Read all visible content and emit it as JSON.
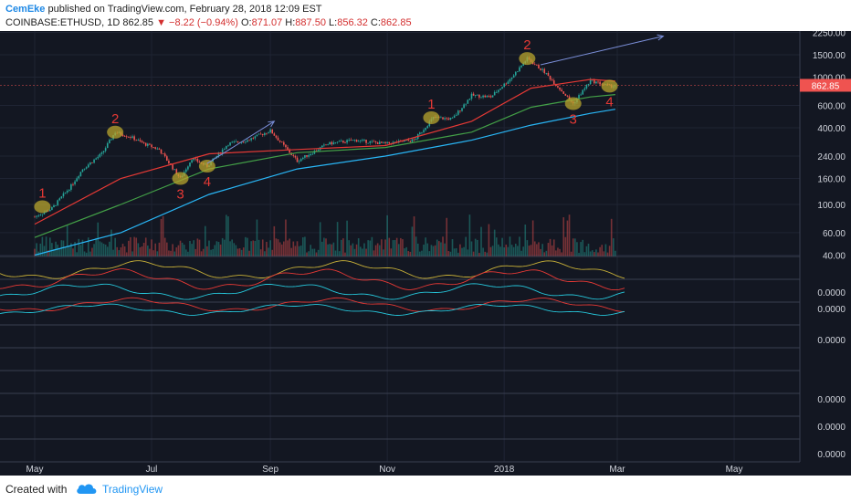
{
  "header": {
    "author": "CemEke",
    "published": "published on TradingView.com, February 28, 2018 12:09 EST",
    "symbol": "COINBASE:ETHUSD, 1D",
    "last": "862.85",
    "change": "−8.22 (−0.94%)",
    "o_label": "O:",
    "o": "871.07",
    "h_label": "H:",
    "h": "887.50",
    "l_label": "L:",
    "l": "856.32",
    "c_label": "C:",
    "c": "862.85"
  },
  "footer": {
    "created_with": "Created with",
    "brand": "TradingView"
  },
  "colors": {
    "background": "#131722",
    "up": "#26a69a",
    "down": "#ef5350",
    "ma_red": "#e53935",
    "ma_green": "#43a047",
    "ma_cyan": "#29b6f6",
    "annotation": "#e53935",
    "highlight": "#b8a52e",
    "arrow": "#7b8fd9"
  },
  "chart_data": {
    "type": "candlestick",
    "x_axis_labels": [
      "May",
      "Jul",
      "Sep",
      "Nov",
      "2018",
      "Mar",
      "May"
    ],
    "y_axis_labels": [
      "2250.00",
      "1500.00",
      "1000.00",
      "600.00",
      "400.00",
      "240.00",
      "160.00",
      "100.00",
      "60.00",
      "40.00"
    ],
    "price_scale": "log",
    "current_price_label": "862.85",
    "indicator_axis_labels": [
      "0.0000",
      "0.0000",
      "0.0000",
      "0.0000",
      "0.0000",
      "0.0000"
    ],
    "annotations": [
      {
        "label": "1",
        "date": "2017-05-05",
        "price": 96
      },
      {
        "label": "2",
        "date": "2017-06-12",
        "price": 370
      },
      {
        "label": "3",
        "date": "2017-07-16",
        "price": 160
      },
      {
        "label": "4",
        "date": "2017-07-30",
        "price": 200
      },
      {
        "label": "1",
        "date": "2017-11-24",
        "price": 480
      },
      {
        "label": "2",
        "date": "2018-01-13",
        "price": 1400
      },
      {
        "label": "3",
        "date": "2018-02-06",
        "price": 620
      },
      {
        "label": "4",
        "date": "2018-02-25",
        "price": 850
      }
    ],
    "moving_averages": [
      {
        "color": "red",
        "points": [
          [
            "2017-05-01",
            70
          ],
          [
            "2017-06-15",
            160
          ],
          [
            "2017-07-31",
            250
          ],
          [
            "2017-09-15",
            270
          ],
          [
            "2017-10-31",
            290
          ],
          [
            "2017-12-15",
            450
          ],
          [
            "2018-01-15",
            820
          ],
          [
            "2018-02-15",
            960
          ],
          [
            "2018-02-28",
            930
          ]
        ]
      },
      {
        "color": "green",
        "points": [
          [
            "2017-05-01",
            55
          ],
          [
            "2017-06-15",
            100
          ],
          [
            "2017-07-31",
            190
          ],
          [
            "2017-09-15",
            255
          ],
          [
            "2017-10-31",
            280
          ],
          [
            "2017-12-15",
            370
          ],
          [
            "2018-01-15",
            580
          ],
          [
            "2018-02-15",
            700
          ],
          [
            "2018-02-28",
            730
          ]
        ]
      },
      {
        "color": "cyan",
        "points": [
          [
            "2017-05-01",
            40
          ],
          [
            "2017-06-15",
            60
          ],
          [
            "2017-07-31",
            120
          ],
          [
            "2017-09-15",
            190
          ],
          [
            "2017-10-31",
            240
          ],
          [
            "2017-12-15",
            320
          ],
          [
            "2018-01-15",
            420
          ],
          [
            "2018-02-15",
            520
          ],
          [
            "2018-02-28",
            560
          ]
        ]
      }
    ],
    "price_path": [
      [
        "2017-05-01",
        80
      ],
      [
        "2017-05-10",
        93
      ],
      [
        "2017-05-20",
        140
      ],
      [
        "2017-05-26",
        190
      ],
      [
        "2017-06-05",
        250
      ],
      [
        "2017-06-12",
        370
      ],
      [
        "2017-06-20",
        340
      ],
      [
        "2017-06-27",
        300
      ],
      [
        "2017-07-05",
        270
      ],
      [
        "2017-07-16",
        160
      ],
      [
        "2017-07-22",
        230
      ],
      [
        "2017-07-30",
        200
      ],
      [
        "2017-08-10",
        300
      ],
      [
        "2017-08-20",
        320
      ],
      [
        "2017-09-01",
        380
      ],
      [
        "2017-09-15",
        220
      ],
      [
        "2017-10-01",
        300
      ],
      [
        "2017-10-15",
        320
      ],
      [
        "2017-10-31",
        300
      ],
      [
        "2017-11-15",
        320
      ],
      [
        "2017-11-25",
        480
      ],
      [
        "2017-12-05",
        470
      ],
      [
        "2017-12-15",
        720
      ],
      [
        "2017-12-25",
        700
      ],
      [
        "2018-01-05",
        1000
      ],
      [
        "2018-01-13",
        1400
      ],
      [
        "2018-01-22",
        1100
      ],
      [
        "2018-02-06",
        620
      ],
      [
        "2018-02-15",
        940
      ],
      [
        "2018-02-25",
        850
      ],
      [
        "2018-02-28",
        863
      ]
    ],
    "projection_arrows": [
      {
        "from": [
          "2017-07-30",
          210
        ],
        "to": [
          "2017-09-03",
          450
        ]
      },
      {
        "from": [
          "2018-01-20",
          1250
        ],
        "to": [
          "2018-03-25",
          2100
        ]
      }
    ],
    "grid": true
  }
}
